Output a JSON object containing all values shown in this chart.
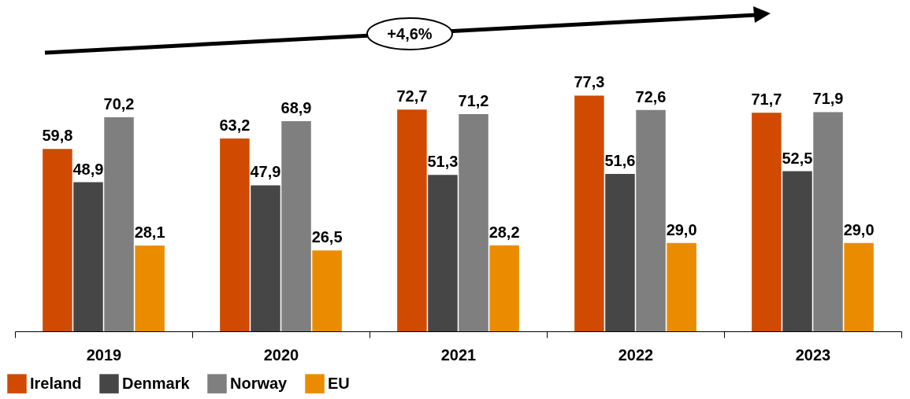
{
  "chart_data": {
    "type": "bar",
    "categories": [
      "2019",
      "2020",
      "2021",
      "2022",
      "2023"
    ],
    "series": [
      {
        "name": "Ireland",
        "color": "#d04a02",
        "values": [
          59.8,
          63.2,
          72.7,
          77.3,
          71.7
        ],
        "value_labels": [
          "59,8",
          "63,2",
          "72,7",
          "77,3",
          "71,7"
        ]
      },
      {
        "name": "Denmark",
        "color": "#464646",
        "values": [
          48.9,
          47.9,
          51.3,
          51.6,
          52.5
        ],
        "value_labels": [
          "48,9",
          "47,9",
          "51,3",
          "51,6",
          "52,5"
        ]
      },
      {
        "name": "Norway",
        "color": "#7f7f7f",
        "values": [
          70.2,
          68.9,
          71.2,
          72.6,
          71.9
        ],
        "value_labels": [
          "70,2",
          "68,9",
          "71,2",
          "72,6",
          "71,9"
        ]
      },
      {
        "name": "EU",
        "color": "#eb8c00",
        "values": [
          28.1,
          26.5,
          28.2,
          29.0,
          29.0
        ],
        "value_labels": [
          "28,1",
          "26,5",
          "28,2",
          "29,0",
          "29,0"
        ]
      }
    ],
    "annotations": [
      "+4,6%"
    ],
    "legend": "bottom left",
    "grid": false,
    "tick_labels": "x"
  }
}
